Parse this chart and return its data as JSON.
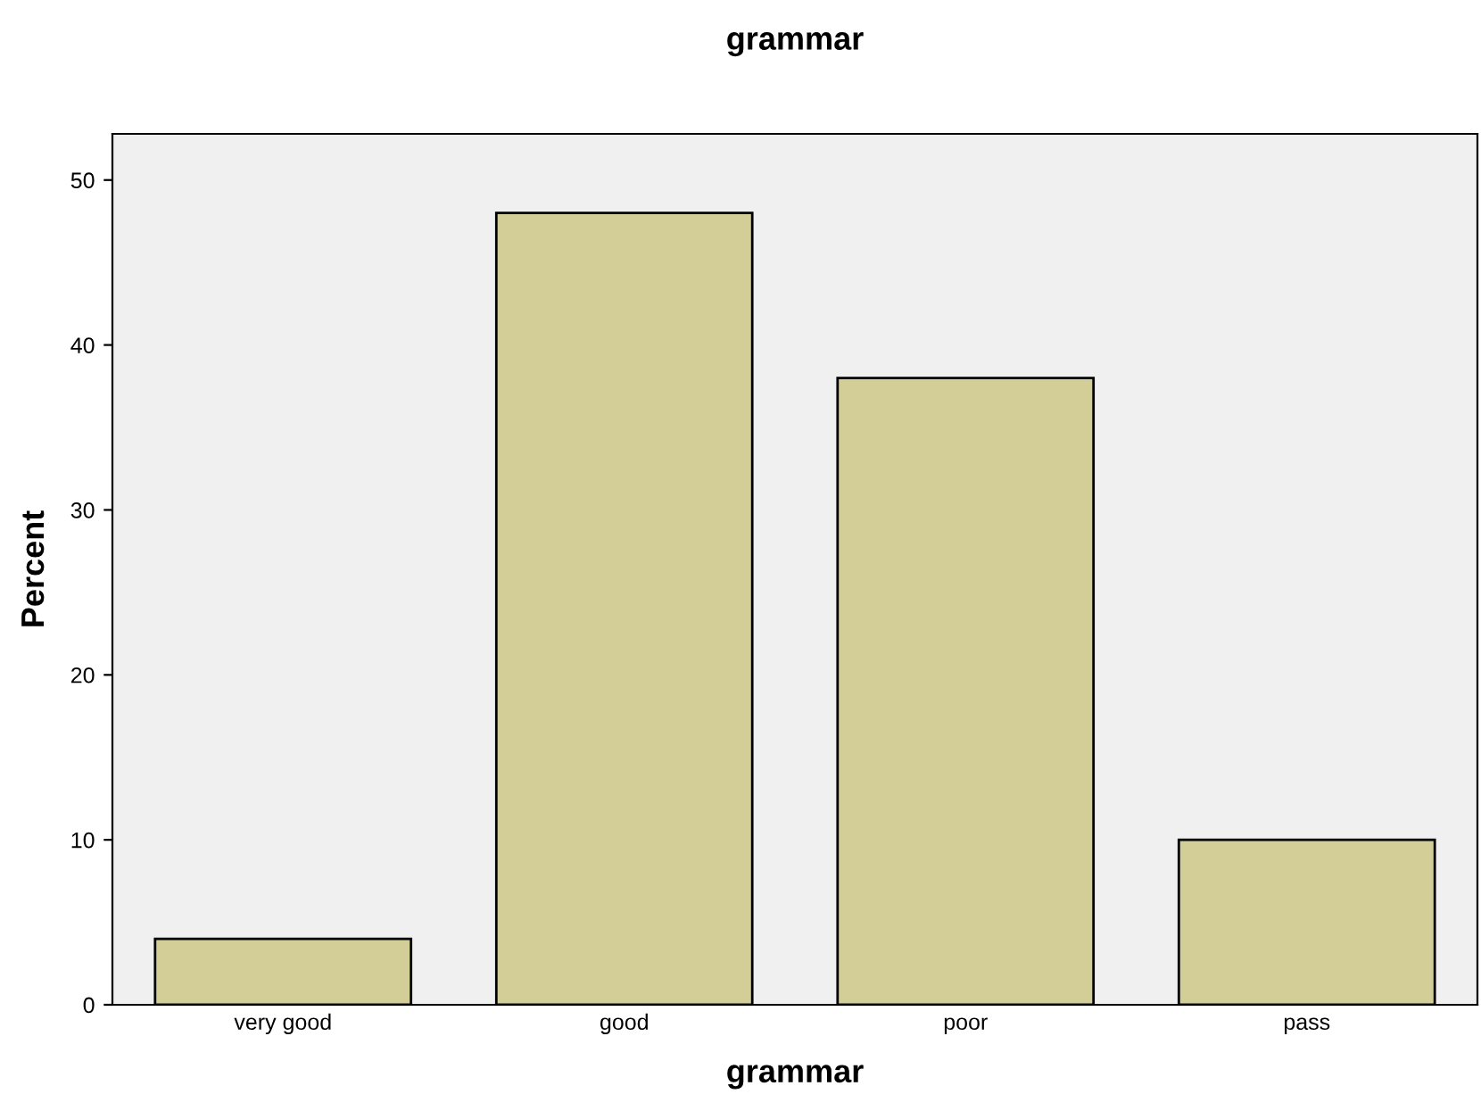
{
  "chart_data": {
    "type": "bar",
    "title": "grammar",
    "xlabel": "grammar",
    "ylabel": "Percent",
    "categories": [
      "very good",
      "good",
      "poor",
      "pass"
    ],
    "values": [
      4,
      48,
      38,
      10
    ],
    "color": "#d3ce98",
    "ylim": [
      0,
      52.8
    ],
    "yticks": [
      0,
      10,
      20,
      30,
      40,
      50
    ],
    "grid": false,
    "legend": false
  }
}
